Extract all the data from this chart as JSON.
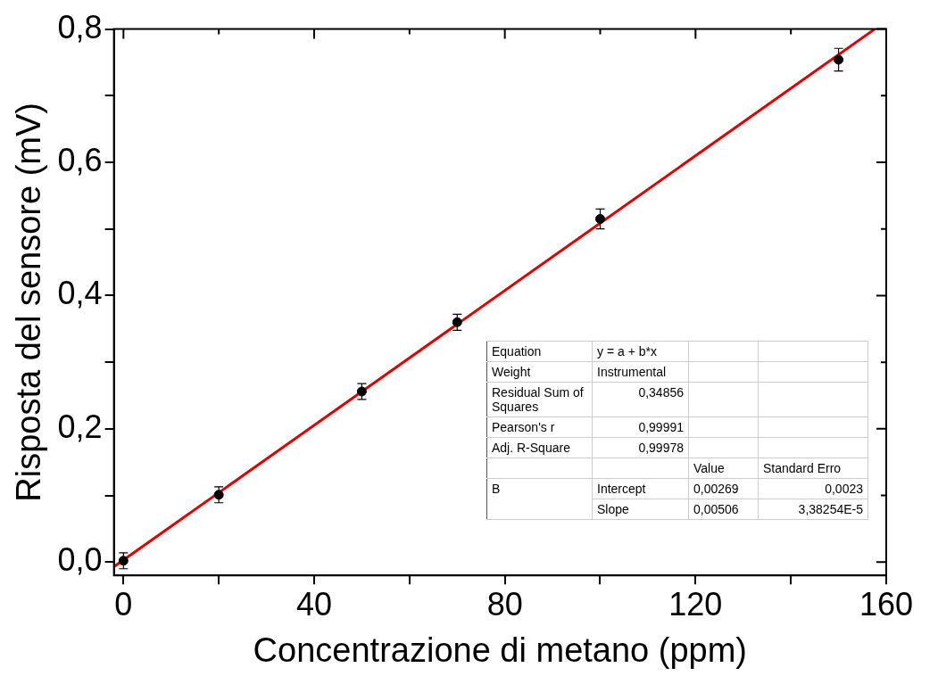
{
  "chart_data": {
    "type": "scatter",
    "xlabel": "Concentrazione di metano (ppm)",
    "ylabel": "Risposta del sensore (mV)",
    "xlim": [
      -2,
      160
    ],
    "ylim": [
      -0.02,
      0.8
    ],
    "xticks": [
      0,
      {
        "value": 20,
        "label": null
      },
      40,
      {
        "value": 60,
        "label": null
      },
      80,
      {
        "value": 100,
        "label": null
      },
      120,
      {
        "value": 140,
        "label": null
      },
      160
    ],
    "yticks": [
      {
        "value": 0,
        "label": "0,0"
      },
      {
        "value": 0.1,
        "label": null
      },
      {
        "value": 0.2,
        "label": "0,2"
      },
      {
        "value": 0.3,
        "label": null
      },
      {
        "value": 0.4,
        "label": "0,4"
      },
      {
        "value": 0.5,
        "label": null
      },
      {
        "value": 0.6,
        "label": "0,6"
      },
      {
        "value": 0.7,
        "label": null
      },
      {
        "value": 0.8,
        "label": "0,8"
      }
    ],
    "grid": false,
    "legend": false,
    "marker": "circle",
    "series": [
      {
        "type": "scatter",
        "color": "#000000",
        "x": [
          0,
          20,
          50,
          70,
          100,
          150
        ],
        "values": [
          0.002,
          0.101,
          0.256,
          0.36,
          0.515,
          0.754
        ],
        "errors": [
          0.012,
          0.012,
          0.012,
          0.012,
          0.015,
          0.017
        ]
      },
      {
        "type": "line",
        "color": "#e00000",
        "line_style": "solid",
        "marker": "none",
        "x": [
          -2,
          157.6
        ],
        "values": [
          -0.007,
          0.8
        ]
      }
    ],
    "annotations": [
      "Equation",
      "y = a + b*x",
      "Weight",
      "Instrumental",
      "Residual Sum of Squares",
      "0,34856",
      "Pearson's r",
      "0,99991",
      "Adj. R-Square",
      "0,99978",
      "Value",
      "Standard Erro",
      "B",
      "Intercept",
      "0,00269",
      "0,0023",
      "Slope",
      "0,00506",
      "3,38254E-5"
    ]
  }
}
